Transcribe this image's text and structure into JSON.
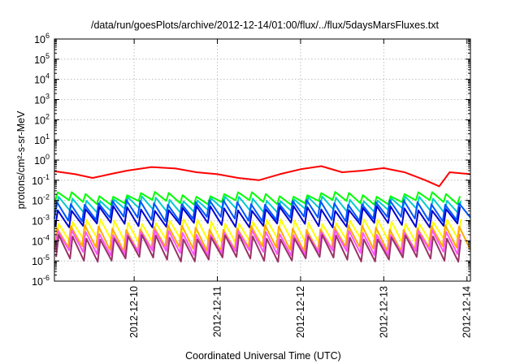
{
  "chart_data": {
    "type": "line",
    "title": "/data/run/goesPlots/archive/2012-12-14/01:00/flux/../flux/5daysMarsFluxes.txt",
    "xlabel": "Coordinated Universal Time (UTC)",
    "ylabel": "protons/cm²-s-sr-MeV",
    "yscale": "log",
    "ylim_exponent": [
      -6,
      6
    ],
    "xlim": [
      "2012-12-09T01:00",
      "2012-12-14T01:00"
    ],
    "xticks": [
      "2012-12-10",
      "2012-12-11",
      "2012-12-12",
      "2012-12-13",
      "2012-12-14"
    ],
    "yticks": [
      {
        "base": "10",
        "exp": "-6"
      },
      {
        "base": "10",
        "exp": "-5"
      },
      {
        "base": "10",
        "exp": "-4"
      },
      {
        "base": "10",
        "exp": "-3"
      },
      {
        "base": "10",
        "exp": "-2"
      },
      {
        "base": "10",
        "exp": "-1"
      },
      {
        "base": "10",
        "exp": "0"
      },
      {
        "base": "10",
        "exp": "1"
      },
      {
        "base": "10",
        "exp": "2"
      },
      {
        "base": "10",
        "exp": "3"
      },
      {
        "base": "10",
        "exp": "4"
      },
      {
        "base": "10",
        "exp": "5"
      },
      {
        "base": "10",
        "exp": "6"
      }
    ],
    "grid": true,
    "legend": "none",
    "series": [
      {
        "color": "#ff0000",
        "pattern": "sawtooth",
        "period_hours": 6,
        "points": [
          [
            "2012-12-09T01:00",
            0.28
          ],
          [
            "2012-12-09T07:00",
            0.2
          ],
          [
            "2012-12-09T12:00",
            0.13
          ],
          [
            "2012-12-09T17:00",
            0.2
          ],
          [
            "2012-12-09T22:00",
            0.3
          ],
          [
            "2012-12-10T05:00",
            0.45
          ],
          [
            "2012-12-10T12:00",
            0.38
          ],
          [
            "2012-12-10T18:00",
            0.25
          ],
          [
            "2012-12-11T00:00",
            0.2
          ],
          [
            "2012-12-11T06:00",
            0.13
          ],
          [
            "2012-12-11T12:00",
            0.1
          ],
          [
            "2012-12-11T18:00",
            0.2
          ],
          [
            "2012-12-12T00:00",
            0.35
          ],
          [
            "2012-12-12T06:00",
            0.5
          ],
          [
            "2012-12-12T12:00",
            0.25
          ],
          [
            "2012-12-12T18:00",
            0.3
          ],
          [
            "2012-12-13T00:00",
            0.4
          ],
          [
            "2012-12-13T06:00",
            0.25
          ],
          [
            "2012-12-13T12:00",
            0.1
          ],
          [
            "2012-12-13T16:00",
            0.05
          ],
          [
            "2012-12-13T19:00",
            0.25
          ],
          [
            "2012-12-14T01:00",
            0.2
          ]
        ]
      },
      {
        "color": "#00ff00",
        "pattern": "sawtooth",
        "period_hours": 4,
        "low": 0.008,
        "high": 0.02
      },
      {
        "color": "#00cccc",
        "pattern": "sawtooth",
        "period_hours": 4,
        "low": 0.003,
        "high": 0.012
      },
      {
        "color": "#0055ff",
        "pattern": "sawtooth",
        "period_hours": 4,
        "low": 0.0012,
        "high": 0.008
      },
      {
        "color": "#0000cc",
        "pattern": "sawtooth",
        "period_hours": 4,
        "low": 0.0006,
        "high": 0.004
      },
      {
        "color": "#ffff00",
        "pattern": "sawtooth",
        "period_hours": 4,
        "low": 9e-05,
        "high": 0.0009
      },
      {
        "color": "#ffaa00",
        "pattern": "sawtooth",
        "period_hours": 4,
        "low": 4e-05,
        "high": 0.00045
      },
      {
        "color": "#ff55ff",
        "pattern": "sawtooth",
        "period_hours": 4,
        "low": 2.5e-05,
        "high": 0.00025
      },
      {
        "color": "#993366",
        "pattern": "sawtooth",
        "period_hours": 4,
        "low": 1.2e-05,
        "high": 0.00015
      }
    ]
  }
}
